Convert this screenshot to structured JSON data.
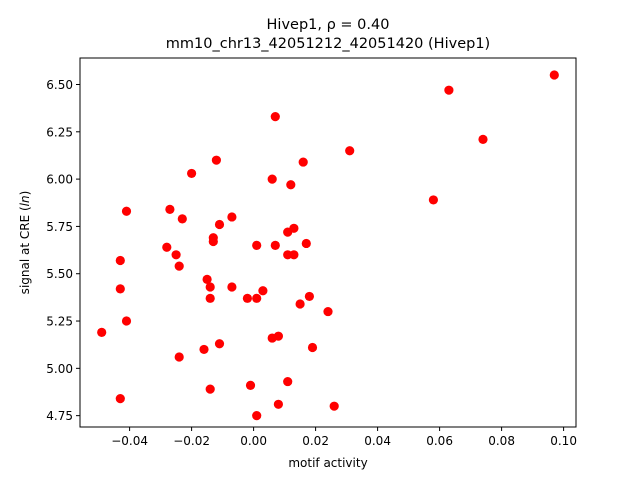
{
  "chart_data": {
    "type": "scatter",
    "title_line1": "Hivep1, ρ = 0.40",
    "title_line2": "mm10_chr13_42051212_42051420 (Hivep1)",
    "xlabel": "motif activity",
    "ylabel": "signal at CRE (ln)",
    "xlim": [
      -0.056,
      0.104
    ],
    "ylim": [
      4.69,
      6.64
    ],
    "xticks": [
      -0.04,
      -0.02,
      0.0,
      0.02,
      0.04,
      0.06,
      0.08,
      0.1
    ],
    "xtick_labels": [
      "−0.04",
      "−0.02",
      "0.00",
      "0.02",
      "0.04",
      "0.06",
      "0.08",
      "0.10"
    ],
    "yticks": [
      4.75,
      5.0,
      5.25,
      5.5,
      5.75,
      6.0,
      6.25,
      6.5
    ],
    "ytick_labels": [
      "4.75",
      "5.00",
      "5.25",
      "5.50",
      "5.75",
      "6.00",
      "6.25",
      "6.50"
    ],
    "grid": false,
    "point_color": "#ff0000",
    "points": [
      {
        "x": -0.049,
        "y": 5.19
      },
      {
        "x": -0.043,
        "y": 5.57
      },
      {
        "x": -0.043,
        "y": 5.42
      },
      {
        "x": -0.043,
        "y": 4.84
      },
      {
        "x": -0.041,
        "y": 5.83
      },
      {
        "x": -0.041,
        "y": 5.25
      },
      {
        "x": -0.028,
        "y": 5.64
      },
      {
        "x": -0.027,
        "y": 5.84
      },
      {
        "x": -0.025,
        "y": 5.6
      },
      {
        "x": -0.024,
        "y": 5.54
      },
      {
        "x": -0.024,
        "y": 5.06
      },
      {
        "x": -0.023,
        "y": 5.79
      },
      {
        "x": -0.02,
        "y": 6.03
      },
      {
        "x": -0.016,
        "y": 5.1
      },
      {
        "x": -0.015,
        "y": 5.47
      },
      {
        "x": -0.014,
        "y": 5.43
      },
      {
        "x": -0.014,
        "y": 5.37
      },
      {
        "x": -0.014,
        "y": 4.89
      },
      {
        "x": -0.013,
        "y": 5.67
      },
      {
        "x": -0.013,
        "y": 5.69
      },
      {
        "x": -0.012,
        "y": 6.1
      },
      {
        "x": -0.011,
        "y": 5.76
      },
      {
        "x": -0.011,
        "y": 5.13
      },
      {
        "x": -0.007,
        "y": 5.8
      },
      {
        "x": -0.007,
        "y": 5.43
      },
      {
        "x": -0.002,
        "y": 5.37
      },
      {
        "x": -0.001,
        "y": 4.91
      },
      {
        "x": 0.001,
        "y": 5.65
      },
      {
        "x": 0.001,
        "y": 5.37
      },
      {
        "x": 0.001,
        "y": 4.75
      },
      {
        "x": 0.003,
        "y": 5.41
      },
      {
        "x": 0.006,
        "y": 6.0
      },
      {
        "x": 0.006,
        "y": 5.16
      },
      {
        "x": 0.007,
        "y": 5.65
      },
      {
        "x": 0.007,
        "y": 6.33
      },
      {
        "x": 0.008,
        "y": 5.17
      },
      {
        "x": 0.008,
        "y": 4.81
      },
      {
        "x": 0.011,
        "y": 5.72
      },
      {
        "x": 0.011,
        "y": 5.6
      },
      {
        "x": 0.011,
        "y": 4.93
      },
      {
        "x": 0.012,
        "y": 5.97
      },
      {
        "x": 0.013,
        "y": 5.6
      },
      {
        "x": 0.013,
        "y": 5.74
      },
      {
        "x": 0.015,
        "y": 5.34
      },
      {
        "x": 0.016,
        "y": 6.09
      },
      {
        "x": 0.017,
        "y": 5.66
      },
      {
        "x": 0.018,
        "y": 5.38
      },
      {
        "x": 0.019,
        "y": 5.11
      },
      {
        "x": 0.024,
        "y": 5.3
      },
      {
        "x": 0.026,
        "y": 4.8
      },
      {
        "x": 0.031,
        "y": 6.15
      },
      {
        "x": 0.058,
        "y": 5.89
      },
      {
        "x": 0.063,
        "y": 6.47
      },
      {
        "x": 0.074,
        "y": 6.21
      },
      {
        "x": 0.097,
        "y": 6.55
      }
    ]
  }
}
